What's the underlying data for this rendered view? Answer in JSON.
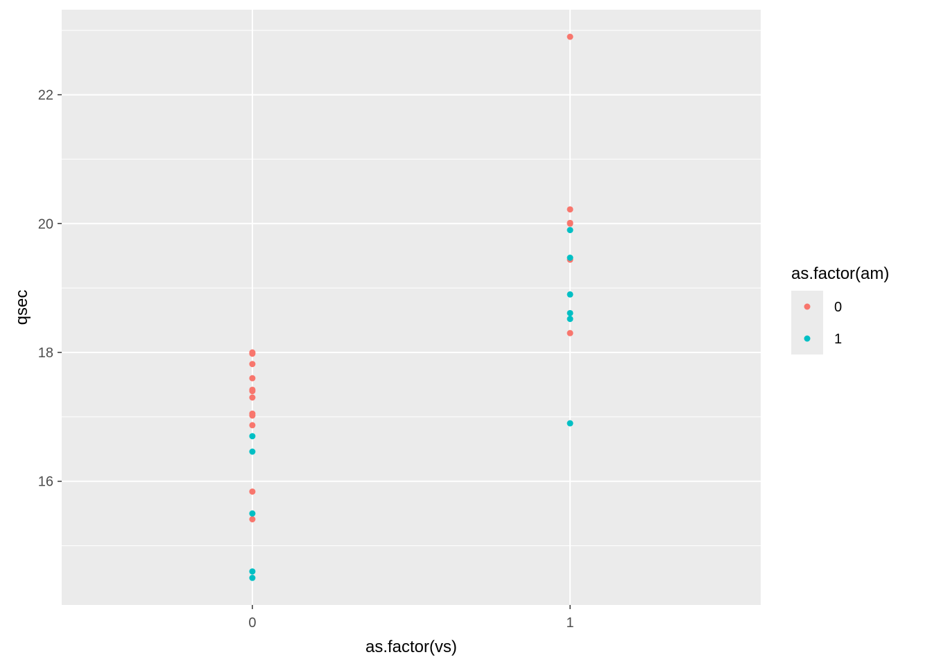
{
  "chart_data": {
    "type": "scatter",
    "xlabel": "as.factor(vs)",
    "ylabel": "qsec",
    "categories": [
      "0",
      "1"
    ],
    "ylim": [
      14.08,
      23.32
    ],
    "y_ticks": [
      16,
      18,
      20,
      22
    ],
    "grid": true,
    "legend": {
      "title": "as.factor(am)",
      "position": "right",
      "entries": [
        "0",
        "1"
      ]
    },
    "colors": {
      "0": "#F8766D",
      "1": "#00BFC4"
    },
    "background": "#EBEBEB",
    "series": [
      {
        "name": "0",
        "points": [
          {
            "x": "0",
            "y": 18.0
          },
          {
            "x": "0",
            "y": 17.98
          },
          {
            "x": "0",
            "y": 17.82
          },
          {
            "x": "0",
            "y": 17.6
          },
          {
            "x": "0",
            "y": 17.42
          },
          {
            "x": "0",
            "y": 17.4
          },
          {
            "x": "0",
            "y": 17.3
          },
          {
            "x": "0",
            "y": 17.05
          },
          {
            "x": "0",
            "y": 17.02
          },
          {
            "x": "0",
            "y": 16.87
          },
          {
            "x": "0",
            "y": 15.84
          },
          {
            "x": "0",
            "y": 15.41
          },
          {
            "x": "1",
            "y": 22.9
          },
          {
            "x": "1",
            "y": 20.22
          },
          {
            "x": "1",
            "y": 20.01
          },
          {
            "x": "1",
            "y": 20.0
          },
          {
            "x": "1",
            "y": 19.44
          },
          {
            "x": "1",
            "y": 18.3
          }
        ]
      },
      {
        "name": "1",
        "points": [
          {
            "x": "0",
            "y": 16.7
          },
          {
            "x": "0",
            "y": 16.46
          },
          {
            "x": "0",
            "y": 15.5
          },
          {
            "x": "0",
            "y": 14.6
          },
          {
            "x": "0",
            "y": 14.5
          },
          {
            "x": "1",
            "y": 19.9
          },
          {
            "x": "1",
            "y": 19.47
          },
          {
            "x": "1",
            "y": 18.9
          },
          {
            "x": "1",
            "y": 18.61
          },
          {
            "x": "1",
            "y": 18.52
          },
          {
            "x": "1",
            "y": 16.9
          }
        ]
      }
    ]
  }
}
